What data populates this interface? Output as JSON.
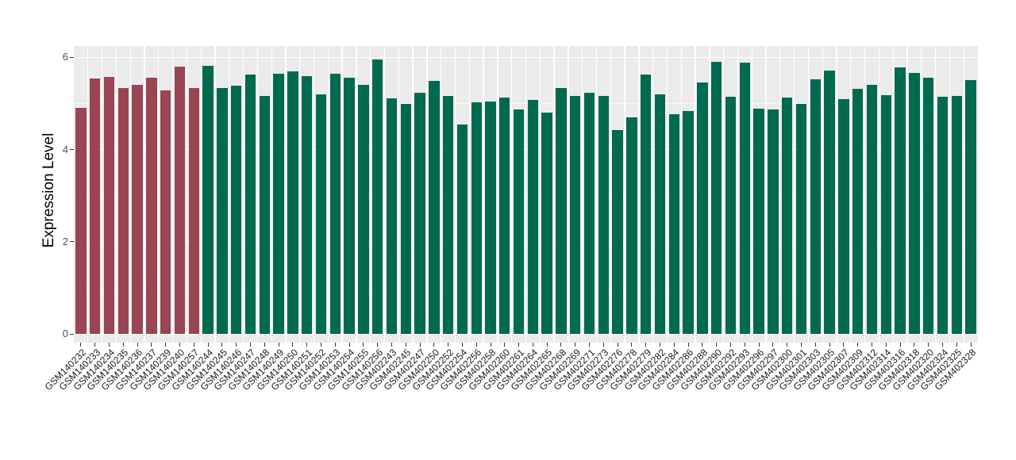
{
  "chart_data": {
    "type": "bar",
    "title": "",
    "xlabel": "",
    "ylabel": "Expression Level",
    "ylim": [
      0,
      6.25
    ],
    "yticks": [
      0,
      2,
      4,
      6
    ],
    "yticks_minor": [
      1,
      3,
      5
    ],
    "grid": true,
    "legend_position": "none",
    "panel_background": "#EBEBEB",
    "grid_color": "#FFFFFF",
    "tick_label_color": "#4D4D4D",
    "axis_title_color": "#000000",
    "bar_groups": [
      {
        "name": "highlight",
        "color": "#9A4554"
      },
      {
        "name": "default",
        "color": "#006A4F"
      }
    ],
    "bars": [
      {
        "label": "GSM140232",
        "value": 4.9,
        "group": "highlight"
      },
      {
        "label": "GSM140233",
        "value": 5.54,
        "group": "highlight"
      },
      {
        "label": "GSM140234",
        "value": 5.57,
        "group": "highlight"
      },
      {
        "label": "GSM140235",
        "value": 5.34,
        "group": "highlight"
      },
      {
        "label": "GSM140236",
        "value": 5.4,
        "group": "highlight"
      },
      {
        "label": "GSM140237",
        "value": 5.56,
        "group": "highlight"
      },
      {
        "label": "GSM140239",
        "value": 5.29,
        "group": "highlight"
      },
      {
        "label": "GSM140240",
        "value": 5.8,
        "group": "highlight"
      },
      {
        "label": "GSM140257",
        "value": 5.33,
        "group": "highlight"
      },
      {
        "label": "GSM140244",
        "value": 5.82,
        "group": "default"
      },
      {
        "label": "GSM140245",
        "value": 5.34,
        "group": "default"
      },
      {
        "label": "GSM140246",
        "value": 5.38,
        "group": "default"
      },
      {
        "label": "GSM140247",
        "value": 5.63,
        "group": "default"
      },
      {
        "label": "GSM140248",
        "value": 5.17,
        "group": "default"
      },
      {
        "label": "GSM140249",
        "value": 5.65,
        "group": "default"
      },
      {
        "label": "GSM140250",
        "value": 5.7,
        "group": "default"
      },
      {
        "label": "GSM140251",
        "value": 5.59,
        "group": "default"
      },
      {
        "label": "GSM140252",
        "value": 5.2,
        "group": "default"
      },
      {
        "label": "GSM140253",
        "value": 5.64,
        "group": "default"
      },
      {
        "label": "GSM140254",
        "value": 5.56,
        "group": "default"
      },
      {
        "label": "GSM140255",
        "value": 5.41,
        "group": "default"
      },
      {
        "label": "GSM140256",
        "value": 5.96,
        "group": "default"
      },
      {
        "label": "GSM402243",
        "value": 5.11,
        "group": "default"
      },
      {
        "label": "GSM402245",
        "value": 5.0,
        "group": "default"
      },
      {
        "label": "GSM402247",
        "value": 5.24,
        "group": "default"
      },
      {
        "label": "GSM402250",
        "value": 5.49,
        "group": "default"
      },
      {
        "label": "GSM402252",
        "value": 5.16,
        "group": "default"
      },
      {
        "label": "GSM402254",
        "value": 4.55,
        "group": "default"
      },
      {
        "label": "GSM402256",
        "value": 5.02,
        "group": "default"
      },
      {
        "label": "GSM402258",
        "value": 5.04,
        "group": "default"
      },
      {
        "label": "GSM402260",
        "value": 5.13,
        "group": "default"
      },
      {
        "label": "GSM402261",
        "value": 4.87,
        "group": "default"
      },
      {
        "label": "GSM402264",
        "value": 5.07,
        "group": "default"
      },
      {
        "label": "GSM402265",
        "value": 4.8,
        "group": "default"
      },
      {
        "label": "GSM402268",
        "value": 5.33,
        "group": "default"
      },
      {
        "label": "GSM402269",
        "value": 5.17,
        "group": "default"
      },
      {
        "label": "GSM402271",
        "value": 5.24,
        "group": "default"
      },
      {
        "label": "GSM402273",
        "value": 5.17,
        "group": "default"
      },
      {
        "label": "GSM402276",
        "value": 4.43,
        "group": "default"
      },
      {
        "label": "GSM402278",
        "value": 4.7,
        "group": "default"
      },
      {
        "label": "GSM402279",
        "value": 5.63,
        "group": "default"
      },
      {
        "label": "GSM402282",
        "value": 5.19,
        "group": "default"
      },
      {
        "label": "GSM402284",
        "value": 4.77,
        "group": "default"
      },
      {
        "label": "GSM402286",
        "value": 4.83,
        "group": "default"
      },
      {
        "label": "GSM402288",
        "value": 5.45,
        "group": "default"
      },
      {
        "label": "GSM402290",
        "value": 5.91,
        "group": "default"
      },
      {
        "label": "GSM402292",
        "value": 5.14,
        "group": "default"
      },
      {
        "label": "GSM402293",
        "value": 5.89,
        "group": "default"
      },
      {
        "label": "GSM402296",
        "value": 4.89,
        "group": "default"
      },
      {
        "label": "GSM402297",
        "value": 4.87,
        "group": "default"
      },
      {
        "label": "GSM402300",
        "value": 5.13,
        "group": "default"
      },
      {
        "label": "GSM402301",
        "value": 5.0,
        "group": "default"
      },
      {
        "label": "GSM402303",
        "value": 5.52,
        "group": "default"
      },
      {
        "label": "GSM402305",
        "value": 5.71,
        "group": "default"
      },
      {
        "label": "GSM402307",
        "value": 5.1,
        "group": "default"
      },
      {
        "label": "GSM402309",
        "value": 5.31,
        "group": "default"
      },
      {
        "label": "GSM402312",
        "value": 5.41,
        "group": "default"
      },
      {
        "label": "GSM402314",
        "value": 5.18,
        "group": "default"
      },
      {
        "label": "GSM402316",
        "value": 5.79,
        "group": "default"
      },
      {
        "label": "GSM402318",
        "value": 5.67,
        "group": "default"
      },
      {
        "label": "GSM402320",
        "value": 5.56,
        "group": "default"
      },
      {
        "label": "GSM402324",
        "value": 5.15,
        "group": "default"
      },
      {
        "label": "GSM402325",
        "value": 5.17,
        "group": "default"
      },
      {
        "label": "GSM402328",
        "value": 5.51,
        "group": "default"
      }
    ]
  }
}
